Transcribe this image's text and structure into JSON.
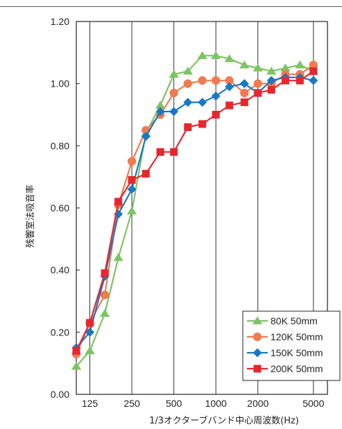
{
  "chart_data": {
    "type": "line",
    "title": "",
    "xlabel": "1/3オクターブバンド中心周波数(Hz)",
    "ylabel": "残響室法吸音率",
    "x_scale": "log",
    "xlim": [
      100,
      6300
    ],
    "ylim": [
      0,
      1.2
    ],
    "x_ticks": [
      125,
      250,
      500,
      1000,
      2000,
      5000
    ],
    "x_tick_labels": [
      "125",
      "250",
      "500",
      "1000",
      "2000",
      "5000"
    ],
    "y_ticks": [
      0,
      0.2,
      0.4,
      0.6,
      0.8,
      1.0,
      1.2
    ],
    "y_tick_labels": [
      "0.00",
      "0.20",
      "0.40",
      "0.60",
      "0.80",
      "1.00",
      "1.20"
    ],
    "grid": "vertical",
    "legend_position": "bottom-right",
    "x": [
      100,
      125,
      160,
      200,
      250,
      315,
      400,
      500,
      630,
      800,
      1000,
      1250,
      1600,
      2000,
      2500,
      3150,
      4000,
      5000
    ],
    "series": [
      {
        "name": "80K 50mm",
        "color": "#7dc462",
        "marker": "triangle",
        "values": [
          0.09,
          0.14,
          0.26,
          0.44,
          0.59,
          0.84,
          0.93,
          1.03,
          1.04,
          1.09,
          1.09,
          1.08,
          1.06,
          1.05,
          1.04,
          1.05,
          1.06,
          1.04
        ]
      },
      {
        "name": "120K 50mm",
        "color": "#f07c4e",
        "marker": "circle",
        "values": [
          0.13,
          0.23,
          0.32,
          0.61,
          0.75,
          0.85,
          0.9,
          0.97,
          1.0,
          1.01,
          1.01,
          1.01,
          0.97,
          1.0,
          1.0,
          1.03,
          1.03,
          1.06
        ]
      },
      {
        "name": "150K 50mm",
        "color": "#1a78c2",
        "marker": "diamond",
        "values": [
          0.15,
          0.2,
          0.38,
          0.58,
          0.66,
          0.83,
          0.91,
          0.91,
          0.94,
          0.94,
          0.96,
          0.99,
          1.0,
          0.97,
          1.01,
          1.02,
          1.02,
          1.01
        ]
      },
      {
        "name": "200K 50mm",
        "color": "#e8262d",
        "marker": "square",
        "values": [
          0.14,
          0.23,
          0.39,
          0.62,
          0.69,
          0.71,
          0.78,
          0.78,
          0.86,
          0.87,
          0.9,
          0.93,
          0.94,
          0.97,
          0.98,
          1.01,
          1.01,
          1.04
        ]
      }
    ]
  }
}
